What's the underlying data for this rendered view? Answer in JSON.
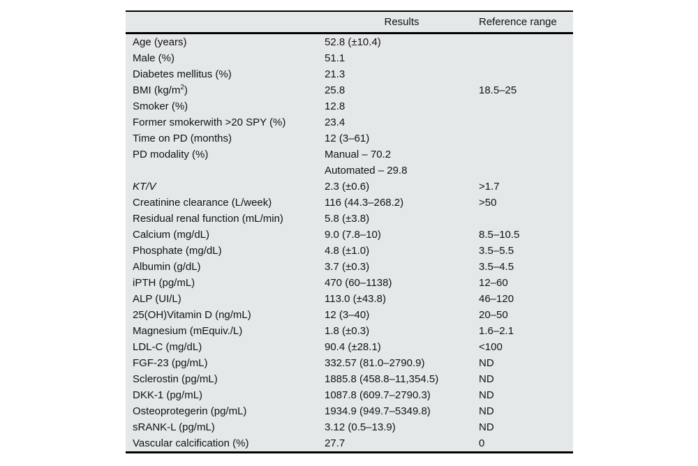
{
  "table": {
    "columns": {
      "parameter": "",
      "results": "Results",
      "reference": "Reference range"
    },
    "rows": [
      {
        "label": "Age (years)",
        "result": "52.8 (±10.4)",
        "reference": ""
      },
      {
        "label": "Male (%)",
        "result": "51.1",
        "reference": ""
      },
      {
        "label": "Diabetes mellitus (%)",
        "result": "21.3",
        "reference": ""
      },
      {
        "label": "BMI (kg/m",
        "label_sup": "2",
        "label_end": ")",
        "result": "25.8",
        "reference": "18.5–25"
      },
      {
        "label": "Smoker (%)",
        "result": "12.8",
        "reference": ""
      },
      {
        "label": "Former smokerwith >20 SPY (%)",
        "result": "23.4",
        "reference": ""
      },
      {
        "label": "Time on PD (months)",
        "result": "12 (3–61)",
        "reference": ""
      },
      {
        "label": "PD modality (%)",
        "result": "Manual – 70.2",
        "reference": ""
      },
      {
        "label": "",
        "result": "Automated – 29.8",
        "reference": ""
      },
      {
        "label": "KT/V",
        "italic": true,
        "result": "2.3 (±0.6)",
        "reference": ">1.7"
      },
      {
        "label": "Creatinine clearance (L/week)",
        "result": "116 (44.3–268.2)",
        "reference": ">50"
      },
      {
        "label": "Residual renal function (mL/min)",
        "result": "5.8 (±3.8)",
        "reference": ""
      },
      {
        "label": "Calcium (mg/dL)",
        "result": "9.0 (7.8–10)",
        "reference": "8.5–10.5"
      },
      {
        "label": "Phosphate (mg/dL)",
        "result": "4.8 (±1.0)",
        "reference": "3.5–5.5"
      },
      {
        "label": "Albumin (g/dL)",
        "result": "3.7 (±0.3)",
        "reference": "3.5–4.5"
      },
      {
        "label": "iPTH (pg/mL)",
        "result": "470 (60–1138)",
        "reference": "12–60"
      },
      {
        "label": "ALP (UI/L)",
        "result": "113.0 (±43.8)",
        "reference": "46–120"
      },
      {
        "label": "25(OH)Vitamin D (ng/mL)",
        "result": "12 (3–40)",
        "reference": "20–50"
      },
      {
        "label": "Magnesium (mEquiv./L)",
        "result": "1.8 (±0.3)",
        "reference": "1.6–2.1"
      },
      {
        "label": "LDL-C (mg/dL)",
        "result": "90.4 (±28.1)",
        "reference": "<100"
      },
      {
        "label": "FGF-23 (pg/mL)",
        "result": "332.57 (81.0–2790.9)",
        "reference": "ND"
      },
      {
        "label": "Sclerostin (pg/mL)",
        "result": "1885.8 (458.8–11,354.5)",
        "reference": "ND"
      },
      {
        "label": "DKK-1 (pg/mL)",
        "result": "1087.8 (609.7–2790.3)",
        "reference": "ND"
      },
      {
        "label": "Osteoprotegerin (pg/mL)",
        "result": "1934.9 (949.7–5349.8)",
        "reference": "ND"
      },
      {
        "label": "sRANK-L (pg/mL)",
        "result": "3.12 (0.5–13.9)",
        "reference": "ND"
      },
      {
        "label": "Vascular calcification (%)",
        "result": "27.7",
        "reference": "0"
      }
    ],
    "colors": {
      "table_bg": "#e4e8e9",
      "rule": "#000000",
      "page_bg": "#ffffff",
      "text": "#121212"
    }
  }
}
